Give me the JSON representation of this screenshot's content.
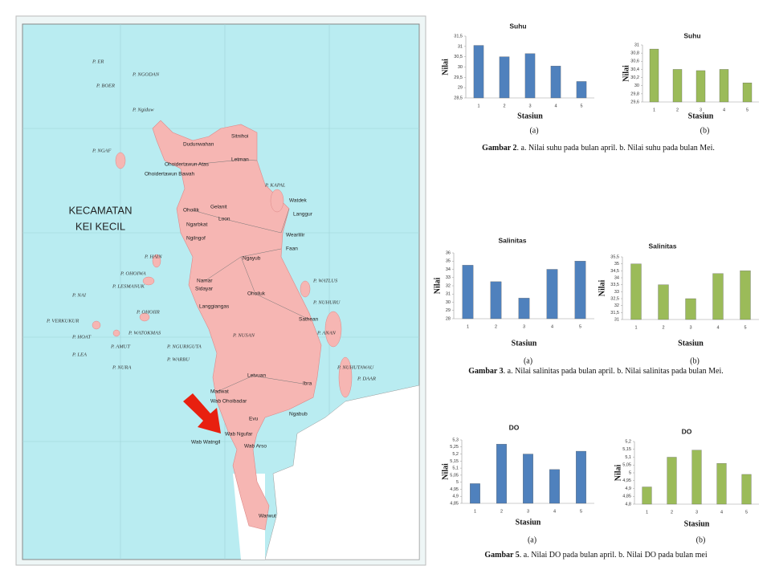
{
  "map": {
    "title": [
      "KECAMATAN",
      "KEI KECIL"
    ],
    "labels": [
      "P. ER",
      "P. NGODAN",
      "P. BOER",
      "P. Ngiduw",
      "Sitnihoi",
      "Dudunwahan",
      "Letman",
      "Ohoidertawun Atas",
      "Ohoidertawun Bawah",
      "P. NGAF",
      "P. KAPAL",
      "Watdek",
      "Langgur",
      "Gelanit",
      "Ohoilik",
      "Loon",
      "Ngarbkat",
      "Ngilngof",
      "Wearlilir",
      "Faan",
      "P. HAIN",
      "Ngayub",
      "P. OHOIWA",
      "Namar",
      "Sidayar",
      "P. WATLUS",
      "P. LESMANUK",
      "Ohoiluk",
      "P. NAI",
      "P. NUHURU",
      "Langgiangas",
      "P. OHOIIR",
      "P. VERKUKUR",
      "Sathean",
      "P. WATOKMAS",
      "P. ANAN",
      "P. HOAT",
      "P. NUSAN",
      "P. AMUT",
      "P. NGURIGUTA",
      "P. WARBU",
      "P. LEA",
      "P. NURA",
      "P. NUHUTAWAU",
      "P. DAAR",
      "Letvuan",
      "Ibra",
      "Madwat",
      "Wab Ohoibadar",
      "Ngabub",
      "Evu",
      "Wab Ngufar",
      "Wab Arso",
      "Wab Watngil",
      "Warwut"
    ]
  },
  "chart_data": [
    {
      "type": "bar",
      "title": "Suhu",
      "xlabel": "Stasiun",
      "ylabel": "Nilai",
      "sublabel": "(a)",
      "color": "#4f81bd",
      "categories": [
        "1",
        "2",
        "3",
        "4",
        "5"
      ],
      "values": [
        31.05,
        30.5,
        30.65,
        30.05,
        29.3
      ],
      "ylim": [
        28.5,
        31.5
      ],
      "yticks": [
        {
          "value": 28.5,
          "label": "28,5"
        },
        29,
        {
          "value": 29.5,
          "label": "29,5"
        },
        30,
        {
          "value": 30.5,
          "label": "30,5"
        },
        31,
        {
          "value": 31.5,
          "label": "31,5"
        }
      ]
    },
    {
      "type": "bar",
      "title": "Suhu",
      "xlabel": "Stasiun",
      "ylabel": "Nilai",
      "sublabel": "(b)",
      "color": "#9bbb59",
      "categories": [
        "1",
        "2",
        "3",
        "4",
        "5"
      ],
      "values": [
        30.9,
        30.4,
        30.37,
        30.4,
        30.07
      ],
      "ylim": [
        29.6,
        31
      ],
      "yticks": [
        {
          "value": 29.6,
          "label": "29,6"
        },
        {
          "value": 29.8,
          "label": "29,8"
        },
        30,
        {
          "value": 30.2,
          "label": "30,2"
        },
        {
          "value": 30.4,
          "label": "30,4"
        },
        {
          "value": 30.6,
          "label": "30,6"
        },
        {
          "value": 30.8,
          "label": "30,8"
        },
        31
      ]
    },
    {
      "type": "bar",
      "title": "Salinitas",
      "xlabel": "Stasiun",
      "ylabel": "Nilai",
      "sublabel": "(a)",
      "color": "#4f81bd",
      "categories": [
        "1",
        "2",
        "3",
        "4",
        "5"
      ],
      "values": [
        34.5,
        32.5,
        30.5,
        34,
        35
      ],
      "ylim": [
        28,
        36
      ],
      "yticks": [
        28,
        29,
        30,
        31,
        32,
        33,
        34,
        35,
        36
      ]
    },
    {
      "type": "bar",
      "title": "Salinitas",
      "xlabel": "Stasiun",
      "ylabel": "Nilai",
      "sublabel": "(b)",
      "color": "#9bbb59",
      "categories": [
        "1",
        "2",
        "3",
        "4",
        "5"
      ],
      "values": [
        35,
        33.5,
        32.5,
        34.3,
        34.5
      ],
      "ylim": [
        31,
        35.5
      ],
      "yticks": [
        31,
        {
          "value": 31.5,
          "label": "31,5"
        },
        32,
        {
          "value": 32.5,
          "label": "32,5"
        },
        33,
        {
          "value": 33.5,
          "label": "33,5"
        },
        34,
        {
          "value": 34.5,
          "label": "34,5"
        },
        35,
        {
          "value": 35.5,
          "label": "35,5"
        }
      ]
    },
    {
      "type": "bar",
      "title": "DO",
      "xlabel": "Stasiun",
      "ylabel": "Nilai",
      "sublabel": "(a)",
      "color": "#4f81bd",
      "categories": [
        "1",
        "2",
        "3",
        "4",
        "5"
      ],
      "values": [
        4.99,
        5.27,
        5.2,
        5.09,
        5.22
      ],
      "ylim": [
        4.85,
        5.3
      ],
      "yticks": [
        {
          "value": 4.85,
          "label": "4,85"
        },
        {
          "value": 4.9,
          "label": "4,9"
        },
        {
          "value": 4.95,
          "label": "4,95"
        },
        5,
        {
          "value": 5.05,
          "label": "5,05"
        },
        {
          "value": 5.1,
          "label": "5,1"
        },
        {
          "value": 5.15,
          "label": "5,15"
        },
        {
          "value": 5.2,
          "label": "5,2"
        },
        {
          "value": 5.25,
          "label": "5,25"
        },
        {
          "value": 5.3,
          "label": "5,3"
        }
      ]
    },
    {
      "type": "bar",
      "title": "DO",
      "xlabel": "Stasiun",
      "ylabel": "Nilai",
      "sublabel": "(b)",
      "color": "#9bbb59",
      "categories": [
        "1",
        "2",
        "3",
        "4",
        "5"
      ],
      "values": [
        4.91,
        5.1,
        5.145,
        5.06,
        4.99
      ],
      "ylim": [
        4.8,
        5.2
      ],
      "yticks": [
        {
          "value": 4.8,
          "label": "4,8"
        },
        {
          "value": 4.85,
          "label": "4,85"
        },
        {
          "value": 4.9,
          "label": "4,9"
        },
        {
          "value": 4.95,
          "label": "4,95"
        },
        5,
        {
          "value": 5.05,
          "label": "5,05"
        },
        {
          "value": 5.1,
          "label": "5,1"
        },
        {
          "value": 5.15,
          "label": "5,15"
        },
        {
          "value": 5.2,
          "label": "5,2"
        }
      ]
    }
  ],
  "captions": [
    {
      "label": "Gambar 2",
      "text": ". a. Nilai suhu pada bulan april. b. Nilai suhu pada bulan Mei."
    },
    {
      "label": "Gambar 3",
      "text": ". a. Nilai salinitas pada bulan april. b. Nilai salinitas pada bulan Mei."
    },
    {
      "label": "Gambar 5",
      "text": ". a. Nilai DO pada bulan april. b. Nilai DO pada bulan mei"
    }
  ]
}
